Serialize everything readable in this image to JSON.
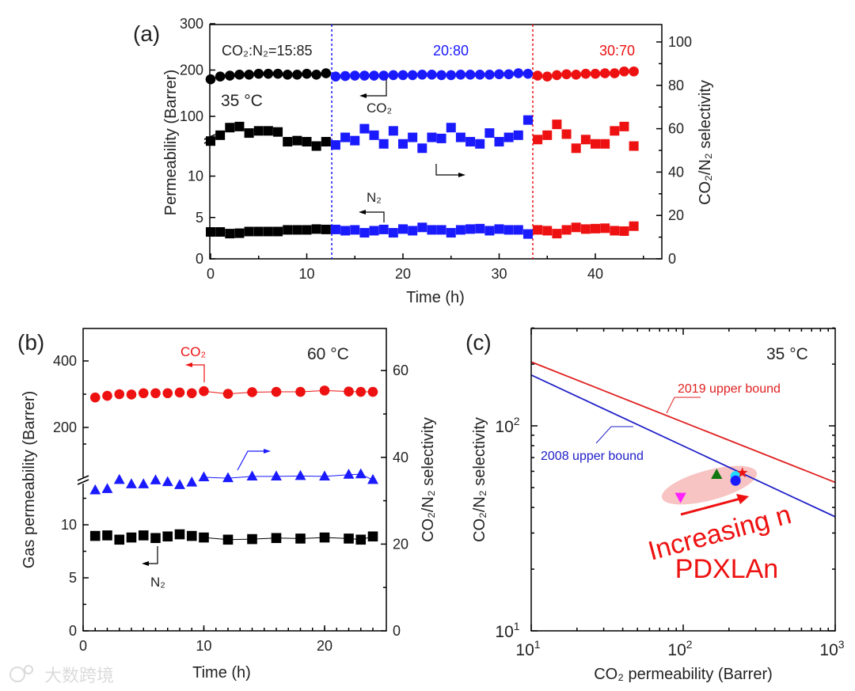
{
  "colors": {
    "black": "#000000",
    "blue": "#1a1aff",
    "red": "#ee1111",
    "green": "#117711",
    "magenta": "#ff22ff",
    "cyan": "#22ddff",
    "highlight": "#f7b8b8",
    "bound2019": "#e02020",
    "bound2008": "#2020c8"
  },
  "watermark": "大数跨境",
  "chart_data": [
    {
      "panel": "(a)",
      "type": "scatter",
      "xlabel": "Time (h)",
      "ylabel": "Permeability (Barrer)",
      "ylabel_right": "CO₂/N₂ selectivity",
      "xlim": [
        0,
        47
      ],
      "xticks": [
        0,
        10,
        20,
        30,
        40
      ],
      "ylim_left_lower": [
        0,
        12
      ],
      "ylim_left_upper": [
        47,
        300
      ],
      "yticks_left": [
        0,
        5,
        10,
        100,
        200,
        300
      ],
      "ylim_right": [
        0,
        108
      ],
      "yticks_right": [
        0,
        20,
        40,
        60,
        80,
        100
      ],
      "annotations": {
        "temperature": "35 °C",
        "feed1": "CO₂:N₂=15:85",
        "feed2": "20:80",
        "feed3": "30:70",
        "co2": "CO₂",
        "n2": "N₂"
      },
      "dividers": [
        12.6,
        33.5
      ],
      "segments": [
        {
          "name": "CO2:N2=15:85",
          "color": "black",
          "t": [
            0,
            1,
            2,
            3,
            4,
            5,
            6,
            7,
            8,
            9,
            10,
            11,
            12
          ],
          "co2": [
            180,
            186,
            188,
            190,
            190,
            192,
            192,
            192,
            190,
            190,
            192,
            190,
            193
          ],
          "selectivity": [
            54.3,
            57,
            60.5,
            61,
            58,
            59,
            59,
            58.5,
            54,
            54.5,
            54,
            52,
            54
          ],
          "n2": [
            3.25,
            3.25,
            3.05,
            3.1,
            3.3,
            3.3,
            3.3,
            3.3,
            3.5,
            3.5,
            3.5,
            3.6,
            3.55
          ]
        },
        {
          "name": "20:80",
          "color": "blue",
          "t": [
            13,
            14,
            15,
            16,
            17,
            18,
            19,
            20,
            21,
            22,
            23,
            24,
            25,
            26,
            27,
            28,
            29,
            30,
            31,
            32,
            33
          ],
          "co2": [
            186,
            187,
            188,
            188,
            188,
            188,
            189,
            189,
            189,
            190,
            190,
            189,
            189,
            190,
            190,
            190,
            190,
            191,
            191,
            193,
            192
          ],
          "selectivity": [
            52.5,
            56,
            54.5,
            60,
            57,
            53,
            59,
            53,
            56,
            51,
            56,
            55.5,
            60.5,
            56,
            54,
            53,
            58,
            54,
            56,
            57,
            64
          ],
          "n2": [
            3.55,
            3.4,
            3.5,
            3.15,
            3.4,
            3.55,
            3.15,
            3.6,
            3.4,
            3.8,
            3.5,
            3.5,
            3.15,
            3.5,
            3.6,
            3.65,
            3.4,
            3.6,
            3.5,
            3.5,
            3.0
          ]
        },
        {
          "name": "30:70",
          "color": "red",
          "t": [
            34,
            35,
            36,
            37,
            38,
            39,
            40,
            41,
            42,
            43,
            44
          ],
          "co2": [
            188,
            186,
            189,
            191,
            190,
            192,
            192,
            193,
            193,
            197,
            197
          ],
          "selectivity": [
            55,
            57,
            62,
            57.5,
            51,
            55,
            53,
            53,
            59,
            61,
            52
          ],
          "n2": [
            3.5,
            3.4,
            3.05,
            3.5,
            3.8,
            3.6,
            3.65,
            3.7,
            3.4,
            3.35,
            3.95
          ]
        }
      ]
    },
    {
      "panel": "(b)",
      "type": "line",
      "xlabel": "Time (h)",
      "ylabel": "Gas permeability (Barrer)",
      "ylabel_right": "CO₂/N₂ selectivity",
      "xlim": [
        0,
        25
      ],
      "xticks": [
        0,
        10,
        20
      ],
      "ylim_left_lower": [
        0,
        14
      ],
      "ylim_left_upper": [
        120,
        500
      ],
      "yticks_left": [
        0,
        5,
        10,
        200,
        400
      ],
      "ylim_right": [
        0,
        70
      ],
      "yticks_right": [
        0,
        20,
        40,
        60
      ],
      "annotations": {
        "temperature": "60 °C",
        "co2": "CO₂",
        "n2": "N₂"
      },
      "t": [
        1,
        2,
        3,
        4,
        5,
        6,
        7,
        8,
        9,
        10,
        12,
        14,
        16,
        18,
        20,
        22,
        23,
        24
      ],
      "series": [
        {
          "name": "CO2 permeability",
          "axis": "left-upper",
          "color": "red",
          "marker": "circle",
          "values": [
            290,
            295,
            300,
            299,
            303,
            303,
            303,
            305,
            303,
            309,
            301,
            306,
            307,
            307,
            311,
            308,
            307,
            307
          ]
        },
        {
          "name": "CO2/N2 selectivity",
          "axis": "right",
          "color": "blue",
          "marker": "triangle-up",
          "values": [
            32.4,
            32.7,
            34.8,
            33.8,
            33.8,
            34.7,
            34.3,
            33.6,
            34.2,
            35.4,
            35.2,
            35.6,
            35.6,
            35.7,
            35.6,
            36,
            36.1,
            34.8
          ]
        },
        {
          "name": "N2 permeability",
          "axis": "left-lower",
          "color": "black",
          "marker": "square",
          "values": [
            8.95,
            9.0,
            8.6,
            8.8,
            9.0,
            8.75,
            8.9,
            9.1,
            8.95,
            8.8,
            8.6,
            8.65,
            8.75,
            8.7,
            8.8,
            8.7,
            8.6,
            8.9
          ]
        }
      ]
    },
    {
      "panel": "(c)",
      "type": "scatter",
      "scale": "log-log",
      "xlabel": "CO₂ permeability (Barrer)",
      "ylabel": "CO₂/N₂ selectivity",
      "xlim": [
        10,
        1000
      ],
      "ylim": [
        10,
        300
      ],
      "xticks": [
        {
          "base": "10",
          "exp": "1"
        },
        {
          "base": "10",
          "exp": "2"
        },
        {
          "base": "10",
          "exp": "3"
        }
      ],
      "yticks": [
        {
          "base": "10",
          "exp": "1"
        },
        {
          "base": "10",
          "exp": "2"
        }
      ],
      "annotations": {
        "temperature": "35 °C",
        "trend": "Increasing n",
        "material": "PDXLAn"
      },
      "bounds": [
        {
          "name": "2019 upper bound",
          "color": "bound2019",
          "points": [
            [
              10,
              205
            ],
            [
              1000,
              53
            ]
          ]
        },
        {
          "name": "2008 upper bound",
          "color": "bound2008",
          "points": [
            [
              10,
              177
            ],
            [
              1000,
              36
            ]
          ]
        }
      ],
      "points": [
        {
          "marker": "triangle-down",
          "color": "magenta",
          "x": 96,
          "y": 45
        },
        {
          "marker": "triangle-up",
          "color": "green",
          "x": 166,
          "y": 57.7
        },
        {
          "marker": "circle",
          "color": "cyan",
          "x": 221,
          "y": 56.8
        },
        {
          "marker": "circle",
          "color": "blue",
          "x": 221,
          "y": 54
        },
        {
          "marker": "star",
          "color": "red",
          "x": 245,
          "y": 59
        }
      ]
    }
  ]
}
